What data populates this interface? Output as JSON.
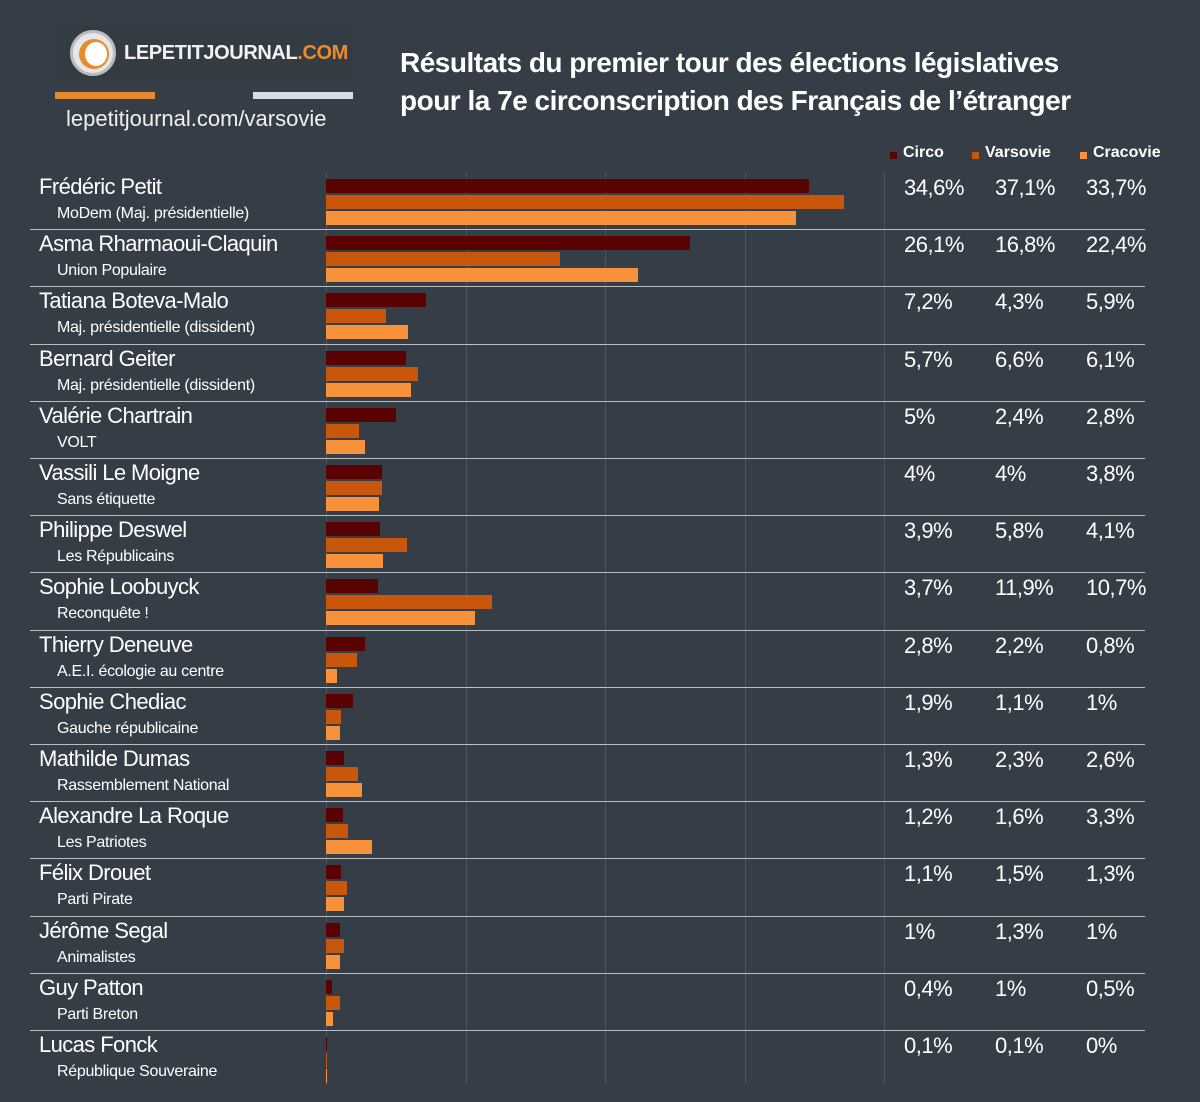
{
  "header": {
    "logo_text": "LEPETITJOURNAL",
    "logo_suffix": ".COM",
    "site_url": "lepetitjournal.com/varsovie",
    "title_line1": "Résultats du premier tour des élections législatives",
    "title_line2": "pour la 7e circonscription des Français de l’étranger"
  },
  "chart_data": {
    "type": "bar",
    "orientation": "horizontal",
    "xlim": [
      0,
      40
    ],
    "grid": true,
    "legend_position": "top-right",
    "series": [
      {
        "name": "Circo",
        "color": "#5a0101",
        "labels": [
          "34,6%",
          "26,1%",
          "7,2%",
          "5,7%",
          "5%",
          "4%",
          "3,9%",
          "3,7%",
          "2,8%",
          "1,9%",
          "1,3%",
          "1,2%",
          "1,1%",
          "1%",
          "0,4%",
          "0,1%"
        ],
        "values": [
          34.6,
          26.1,
          7.2,
          5.7,
          5,
          4,
          3.9,
          3.7,
          2.8,
          1.9,
          1.3,
          1.2,
          1.1,
          1,
          0.4,
          0.1
        ]
      },
      {
        "name": "Varsovie",
        "color": "#c9570b",
        "labels": [
          "37,1%",
          "16,8%",
          "4,3%",
          "6,6%",
          "2,4%",
          "4%",
          "5,8%",
          "11,9%",
          "2,2%",
          "1,1%",
          "2,3%",
          "1,6%",
          "1,5%",
          "1,3%",
          "1%",
          "0,1%"
        ],
        "values": [
          37.1,
          16.8,
          4.3,
          6.6,
          2.4,
          4,
          5.8,
          11.9,
          2.2,
          1.1,
          2.3,
          1.6,
          1.5,
          1.3,
          1,
          0.1
        ]
      },
      {
        "name": "Cracovie",
        "color": "#f7923a",
        "labels": [
          "33,7%",
          "22,4%",
          "5,9%",
          "6,1%",
          "2,8%",
          "3,8%",
          "4,1%",
          "10,7%",
          "0,8%",
          "1%",
          "2,6%",
          "3,3%",
          "1,3%",
          "1%",
          "0,5%",
          "0%"
        ],
        "values": [
          33.7,
          22.4,
          5.9,
          6.1,
          2.8,
          3.8,
          4.1,
          10.7,
          0.8,
          1,
          2.6,
          3.3,
          1.3,
          1,
          0.5,
          0
        ]
      }
    ],
    "categories": [
      {
        "name": "Frédéric Petit",
        "party": "MoDem (Maj. présidentielle)"
      },
      {
        "name": "Asma Rharmaoui-Claquin",
        "party": "Union Populaire"
      },
      {
        "name": "Tatiana Boteva-Malo",
        "party": "Maj. présidentielle (dissident)"
      },
      {
        "name": "Bernard Geiter",
        "party": "Maj. présidentielle (dissident)"
      },
      {
        "name": "Valérie Chartrain",
        "party": "VOLT"
      },
      {
        "name": "Vassili Le Moigne",
        "party": "Sans étiquette"
      },
      {
        "name": "Philippe Deswel",
        "party": "Les Républicains"
      },
      {
        "name": "Sophie Loobuyck",
        "party": "Reconquête !"
      },
      {
        "name": "Thierry Deneuve",
        "party": "A.E.I. écologie au centre"
      },
      {
        "name": "Sophie Chediac",
        "party": "Gauche républicaine"
      },
      {
        "name": "Mathilde Dumas",
        "party": "Rassemblement National"
      },
      {
        "name": "Alexandre La Roque",
        "party": "Les Patriotes"
      },
      {
        "name": "Félix Drouet",
        "party": "Parti Pirate"
      },
      {
        "name": "Jérôme Segal",
        "party": "Animalistes"
      },
      {
        "name": "Guy Patton",
        "party": "Parti Breton"
      },
      {
        "name": "Lucas Fonck",
        "party": "République Souveraine"
      }
    ]
  }
}
